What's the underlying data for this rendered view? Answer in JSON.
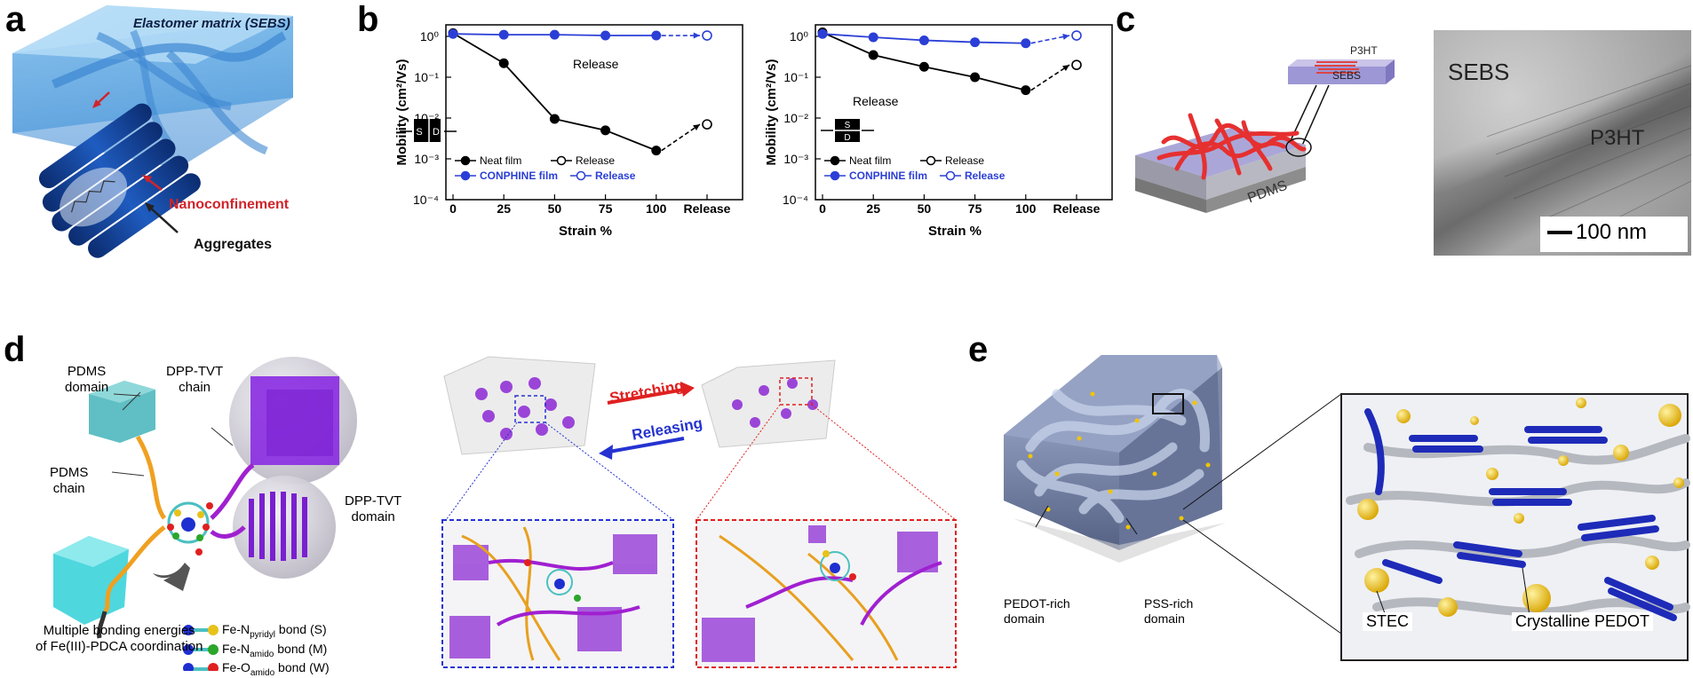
{
  "panels": {
    "a": {
      "letter": "a",
      "elastomer": "Elastomer matrix (SEBS)",
      "nanoconfinement": "Nanoconfinement",
      "aggregates": "Aggregates"
    },
    "b": {
      "letter": "b"
    },
    "c": {
      "letter": "c",
      "p3ht_top": "P3HT",
      "sebs_top": "SEBS",
      "pdms": "PDMS",
      "tem_sebs": "SEBS",
      "tem_p3ht": "P3HT",
      "scale": "100 nm"
    },
    "d": {
      "letter": "d",
      "pdms_domain": [
        "PDMS",
        "domain"
      ],
      "dpp_chain": [
        "DPP-TVT",
        "chain"
      ],
      "pdms_chain": [
        "PDMS",
        "chain"
      ],
      "dpp_domain": [
        "DPP-TVT",
        "domain"
      ],
      "multiple": [
        "Multiple bonding energies",
        "of Fe(III)-PDCA coordination"
      ],
      "bond1": {
        "pre": "Fe-N",
        "sub": "pyridyl",
        "post": " bond (S)"
      },
      "bond2": {
        "pre": "Fe-N",
        "sub": "amido",
        "post": " bond (M)"
      },
      "bond3": {
        "pre": "Fe-O",
        "sub": "amido",
        "post": " bond (W)"
      },
      "stretching": "Stretching",
      "releasing": "Releasing"
    },
    "e": {
      "letter": "e",
      "pedot_rich": [
        "PEDOT-rich",
        "domain"
      ],
      "pss_rich": [
        "PSS-rich",
        "domain"
      ],
      "stec": "STEC",
      "crystalline": "Crystalline PEDOT"
    }
  },
  "colors": {
    "neat": "#000000",
    "conphine": "#2b3fd6",
    "nanoconf": "#d0242b"
  },
  "chart_data": [
    {
      "type": "line",
      "xlabel": "Strain %",
      "ylabel": "Mobility (cm²/Vs)",
      "categories": [
        "0",
        "25",
        "50",
        "75",
        "100",
        "Release"
      ],
      "yscale": "log",
      "ylim": [
        0.0001,
        1
      ],
      "ytick_labels": [
        "10⁰",
        "10⁻¹",
        "10⁻²",
        "10⁻³",
        "10⁻⁴"
      ],
      "annotation": "Release",
      "device_labels": [
        "S",
        "D"
      ],
      "legend": [
        "Neat film",
        "Release",
        "CONPHINE film",
        "Release"
      ],
      "series": [
        {
          "name": "Neat film",
          "values": [
            1.2,
            0.22,
            0.0095,
            0.005,
            0.0016,
            null
          ],
          "color": "#000000"
        },
        {
          "name": "Release",
          "values": [
            null,
            null,
            null,
            null,
            null,
            0.007
          ],
          "color": "#000000"
        },
        {
          "name": "CONPHINE film",
          "values": [
            1.15,
            1.1,
            1.1,
            1.05,
            1.05,
            null
          ],
          "color": "#2b3fd6"
        },
        {
          "name": "Release",
          "values": [
            null,
            null,
            null,
            null,
            null,
            1.05
          ],
          "color": "#2b3fd6"
        }
      ]
    },
    {
      "type": "line",
      "xlabel": "Strain %",
      "ylabel": "Mobility (cm²/Vs)",
      "categories": [
        "0",
        "25",
        "50",
        "75",
        "100",
        "Release"
      ],
      "yscale": "log",
      "ylim": [
        0.0001,
        1
      ],
      "ytick_labels": [
        "10⁰",
        "10⁻¹",
        "10⁻²",
        "10⁻³",
        "10⁻⁴"
      ],
      "annotation": "Release",
      "device_labels": [
        "S",
        "D"
      ],
      "legend": [
        "Neat film",
        "Release",
        "CONPHINE film",
        "Release"
      ],
      "series": [
        {
          "name": "Neat film",
          "values": [
            1.25,
            0.35,
            0.18,
            0.1,
            0.048,
            null
          ],
          "color": "#000000"
        },
        {
          "name": "Release",
          "values": [
            null,
            null,
            null,
            null,
            null,
            0.2
          ],
          "color": "#000000"
        },
        {
          "name": "CONPHINE film",
          "values": [
            1.15,
            0.95,
            0.8,
            0.72,
            0.68,
            null
          ],
          "color": "#2b3fd6"
        },
        {
          "name": "Release",
          "values": [
            null,
            null,
            null,
            null,
            null,
            1.05
          ],
          "color": "#2b3fd6"
        }
      ]
    }
  ]
}
